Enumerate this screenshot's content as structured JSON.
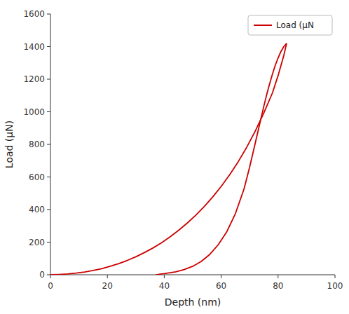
{
  "chart_data": {
    "type": "line",
    "xlabel": "Depth (nm)",
    "ylabel": "Load (μN)",
    "xlim": [
      0,
      100
    ],
    "ylim": [
      0,
      1600
    ],
    "xticks": [
      0,
      20,
      40,
      60,
      80,
      100
    ],
    "yticks": [
      0,
      200,
      400,
      600,
      800,
      1000,
      1200,
      1400,
      1600
    ],
    "grid": false,
    "legend": "upper right",
    "series": [
      {
        "color": "#cc0000",
        "x": [
          0,
          3,
          6,
          9,
          12,
          15,
          18,
          21,
          24,
          27,
          30,
          33,
          36,
          39,
          42,
          45,
          48,
          51,
          54,
          57,
          60,
          63,
          66,
          69,
          72,
          75,
          78,
          80,
          82,
          83
        ],
        "values": [
          0,
          2,
          5,
          10,
          17,
          26,
          37,
          52,
          68,
          88,
          110,
          136,
          164,
          196,
          232,
          272,
          316,
          364,
          418,
          477,
          542,
          614,
          694,
          783,
          882,
          993,
          1115,
          1222,
          1345,
          1420
        ]
      },
      {
        "name": "Load (μN",
        "color": "#cc0000",
        "x": [
          83,
          82,
          81,
          80,
          79,
          78,
          77,
          76,
          75,
          74,
          72,
          70,
          68,
          65,
          62,
          59,
          56,
          53,
          50,
          47,
          44,
          42,
          40,
          38.5,
          37.5,
          37
        ],
        "values": [
          1420,
          1400,
          1370,
          1330,
          1285,
          1230,
          1170,
          1105,
          1035,
          960,
          810,
          660,
          525,
          375,
          265,
          185,
          125,
          82,
          52,
          32,
          18,
          12,
          7,
          4,
          1,
          0
        ]
      }
    ]
  }
}
